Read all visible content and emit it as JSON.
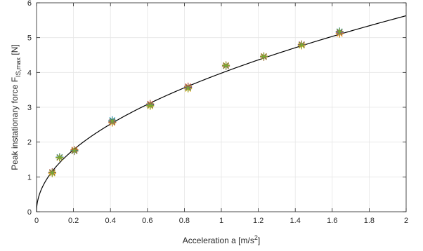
{
  "chart_data": {
    "type": "scatter",
    "title": "",
    "xlabel": {
      "main": "Acceleration a [m/s",
      "sup": "2",
      "tail": "]"
    },
    "ylabel": {
      "main": "Peak instationary force F",
      "sub": "IS,max",
      "tail": " [N]"
    },
    "xlim": [
      0,
      2
    ],
    "ylim": [
      0,
      6
    ],
    "xticks": [
      "0",
      "0.2",
      "0.4",
      "0.6",
      "0.8",
      "1",
      "1.2",
      "1.4",
      "1.6",
      "1.8",
      "2"
    ],
    "yticks": [
      "0",
      "1",
      "2",
      "3",
      "4",
      "5",
      "6"
    ],
    "grid": true,
    "legend": "none",
    "series": [
      {
        "color": "#0072BD",
        "x": [
          0.085,
          0.125,
          0.205,
          0.41,
          0.615,
          0.82,
          1.025,
          1.23,
          1.435,
          1.64
        ],
        "y": [
          1.12,
          1.57,
          1.76,
          2.63,
          3.08,
          3.58,
          4.18,
          4.45,
          4.79,
          5.18
        ]
      },
      {
        "color": "#D95319",
        "x": [
          0.085,
          0.125,
          0.205,
          0.41,
          0.615,
          0.82,
          1.025,
          1.23,
          1.435,
          1.64
        ],
        "y": [
          1.14,
          1.55,
          1.78,
          2.57,
          3.1,
          3.6,
          4.21,
          4.47,
          4.81,
          5.12
        ]
      },
      {
        "color": "#EDB120",
        "x": [
          0.085,
          0.125,
          0.205,
          0.41,
          0.615,
          0.82,
          1.025,
          1.23,
          1.435,
          1.64
        ],
        "y": [
          1.1,
          1.55,
          1.75,
          2.55,
          3.03,
          3.53,
          4.18,
          4.44,
          4.77,
          5.11
        ]
      },
      {
        "color": "#7E2F8E",
        "x": [
          0.085,
          0.125,
          0.205,
          0.41,
          0.615,
          0.82,
          1.025,
          1.23,
          1.435,
          1.64
        ],
        "y": [
          1.13,
          1.56,
          1.74,
          2.58,
          3.06,
          3.57,
          4.19,
          4.45,
          4.8,
          5.15
        ]
      },
      {
        "color": "#77AC30",
        "x": [
          0.085,
          0.125,
          0.205,
          0.41,
          0.615,
          0.82,
          1.025,
          1.23,
          1.435,
          1.64
        ],
        "y": [
          1.12,
          1.56,
          1.75,
          2.6,
          3.05,
          3.55,
          4.2,
          4.46,
          4.79,
          5.17
        ]
      }
    ],
    "fit": {
      "type": "line",
      "color": "#000000",
      "coefficient": 3.98,
      "exponent": 0.5
    }
  }
}
